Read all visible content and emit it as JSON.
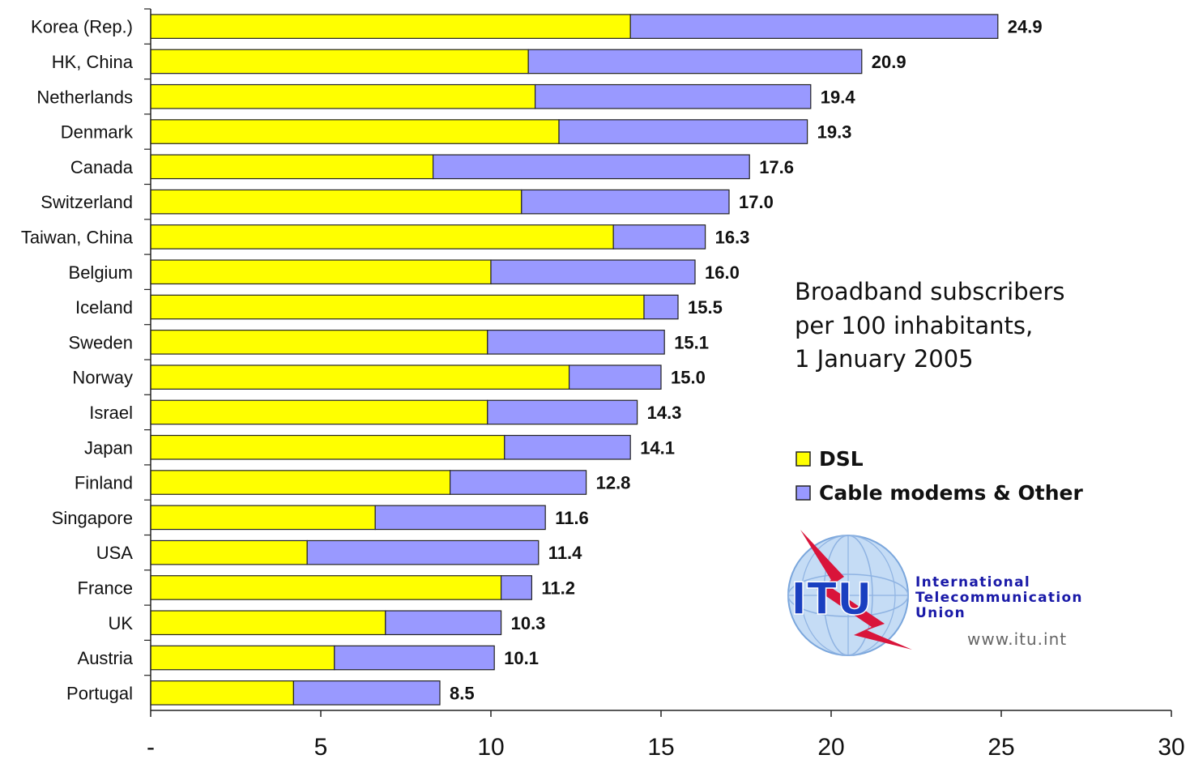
{
  "chart_data": {
    "type": "bar",
    "orientation": "horizontal",
    "stacked": true,
    "title": [
      "Broadband subscribers",
      "per 100 inhabitants,",
      "1 January 2005"
    ],
    "categories": [
      "Korea (Rep.)",
      "HK, China",
      "Netherlands",
      "Denmark",
      "Canada",
      "Switzerland",
      "Taiwan, China",
      "Belgium",
      "Iceland",
      "Sweden",
      "Norway",
      "Israel",
      "Japan",
      "Finland",
      "Singapore",
      "USA",
      "France",
      "UK",
      "Austria",
      "Portugal"
    ],
    "series": [
      {
        "name": "DSL",
        "color": "#ffff00",
        "values": [
          14.1,
          11.1,
          11.3,
          12.0,
          8.3,
          10.9,
          13.6,
          10.0,
          14.5,
          9.9,
          12.3,
          9.9,
          10.4,
          8.8,
          6.6,
          4.6,
          10.3,
          6.9,
          5.4,
          4.2
        ]
      },
      {
        "name": "Cable modems & Other",
        "color": "#9999ff",
        "values": [
          10.8,
          9.8,
          8.1,
          7.3,
          9.3,
          6.1,
          2.7,
          6.0,
          1.0,
          5.2,
          2.7,
          4.4,
          3.7,
          4.0,
          5.0,
          6.8,
          0.9,
          3.4,
          4.7,
          4.3
        ]
      }
    ],
    "totals": [
      "24.9",
      "20.9",
      "19.4",
      "19.3",
      "17.6",
      "17.0",
      "16.3",
      "16.0",
      "15.5",
      "15.1",
      "15.0",
      "14.3",
      "14.1",
      "12.8",
      "11.6",
      "11.4",
      "11.2",
      "10.3",
      "10.1",
      "8.5"
    ],
    "xlim": [
      0,
      30
    ],
    "xticks": [
      0,
      5,
      10,
      15,
      20,
      25,
      30
    ],
    "xtick_labels": [
      "-",
      "5",
      "10",
      "15",
      "20",
      "25",
      "30"
    ],
    "grid": false,
    "legend_position": "right"
  },
  "logo": {
    "abbreviation": "ITU",
    "org_lines": [
      "International",
      "Telecommunication",
      "Union"
    ],
    "url": "www.itu.int"
  }
}
